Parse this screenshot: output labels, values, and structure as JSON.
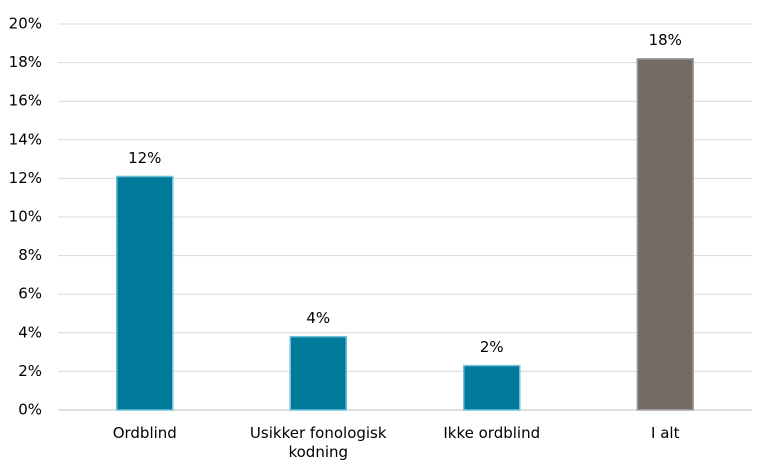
{
  "chart_data": {
    "type": "bar",
    "categories": [
      "Ordblind",
      "Usikker fonologisk kodning",
      "Ikke ordblind",
      "I alt"
    ],
    "values": [
      12.1,
      3.8,
      2.3,
      18.2
    ],
    "value_labels": [
      "12%",
      "4%",
      "2%",
      "18%"
    ],
    "colors": [
      "#00799b",
      "#00799b",
      "#00799b",
      "#726b66"
    ],
    "ylim": [
      0,
      20
    ],
    "yticks": [
      {
        "value": 0,
        "label": "0%"
      },
      {
        "value": 2,
        "label": "2%"
      },
      {
        "value": 4,
        "label": "4%"
      },
      {
        "value": 6,
        "label": "6%"
      },
      {
        "value": 8,
        "label": "8%"
      },
      {
        "value": 10,
        "label": "10%"
      },
      {
        "value": 12,
        "label": "12%"
      },
      {
        "value": 14,
        "label": "14%"
      },
      {
        "value": 16,
        "label": "16%"
      },
      {
        "value": 18,
        "label": "18%"
      },
      {
        "value": 20,
        "label": "20%"
      }
    ],
    "grid": true
  }
}
